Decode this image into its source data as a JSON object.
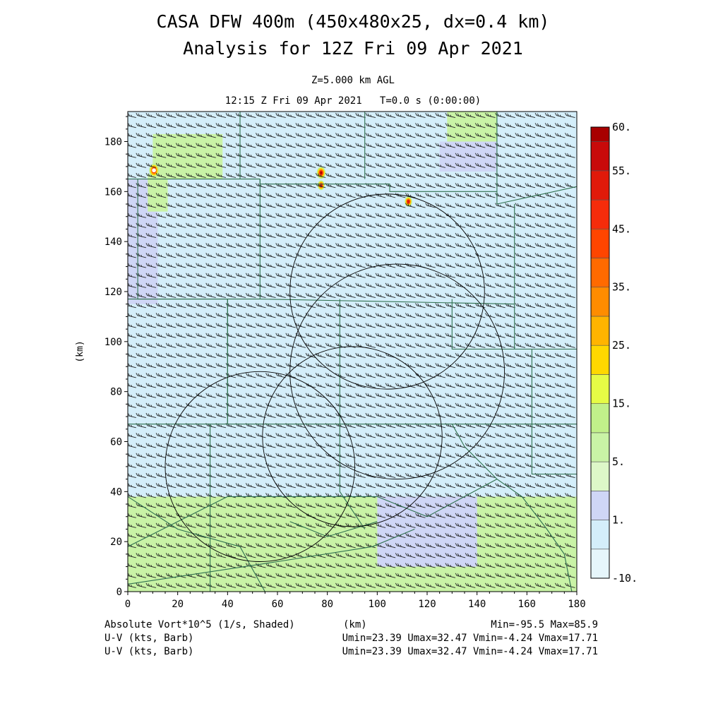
{
  "header": {
    "title_line1": "CASA DFW 400m (450x480x25, dx=0.4 km)",
    "title_line2": "Analysis for 12Z Fri 09 Apr 2021",
    "level": "Z=5.000 km AGL",
    "time": "12:15 Z Fri 09 Apr 2021   T=0.0 s (0:00:00)"
  },
  "footer": {
    "field": "Absolute Vort*10^5 (1/s, Shaded)",
    "xunit": "(km)",
    "minmax": "Min=-95.5 Max=85.9",
    "barb1_label": "U-V (kts, Barb)",
    "barb1_stats": "Umin=23.39 Umax=32.47 Vmin=-4.24 Vmax=17.71",
    "barb2_label": "U-V (kts, Barb)",
    "barb2_stats": "Umin=23.39 Umax=32.47 Vmin=-4.24 Vmax=17.71"
  },
  "chart_data": {
    "type": "heatmap",
    "title": "CASA DFW 400m (450x480x25, dx=0.4 km) Analysis for 12Z Fri 09 Apr 2021",
    "xlabel": "(km)",
    "ylabel": "(km)",
    "xlim": [
      0,
      180
    ],
    "ylim": [
      0,
      192
    ],
    "xticks": [
      0,
      20,
      40,
      60,
      80,
      100,
      120,
      140,
      160,
      180
    ],
    "yticks": [
      0,
      20,
      40,
      60,
      80,
      100,
      120,
      140,
      160,
      180
    ],
    "field_range": {
      "min": -95.5,
      "max": 85.9
    },
    "colorbar": {
      "bins": [
        {
          "value": -10,
          "color": "#e6f6fb"
        },
        {
          "value": 0,
          "color": "#d4eefa"
        },
        {
          "value": 1,
          "color": "#cfd6f6"
        },
        {
          "value": 2,
          "color": "#ddf7c8"
        },
        {
          "value": 5,
          "color": "#c9f3a6"
        },
        {
          "value": 10,
          "color": "#c1f08a"
        },
        {
          "value": 15,
          "color": "#e6fb45"
        },
        {
          "value": 20,
          "color": "#ffd800"
        },
        {
          "value": 25,
          "color": "#ffb400"
        },
        {
          "value": 30,
          "color": "#ff8c00"
        },
        {
          "value": 35,
          "color": "#ff6a00"
        },
        {
          "value": 40,
          "color": "#ff4500"
        },
        {
          "value": 45,
          "color": "#f52c0b"
        },
        {
          "value": 50,
          "color": "#e01a0a"
        },
        {
          "value": 55,
          "color": "#c80a0a"
        },
        {
          "value": 60,
          "color": "#a80000"
        }
      ],
      "labels": [
        {
          "value": -10,
          "text": "-10."
        },
        {
          "value": 1,
          "text": "1."
        },
        {
          "value": 5,
          "text": "5."
        },
        {
          "value": 15,
          "text": "15."
        },
        {
          "value": 25,
          "text": "25."
        },
        {
          "value": 35,
          "text": "35."
        },
        {
          "value": 45,
          "text": "45."
        },
        {
          "value": 55,
          "text": "55."
        },
        {
          "value": 60,
          "text": "60."
        }
      ]
    },
    "shaded_regions": [
      {
        "x": [
          0,
          180
        ],
        "y": [
          0,
          38
        ],
        "value": 5
      },
      {
        "x": [
          100,
          140
        ],
        "y": [
          10,
          38
        ],
        "value": 1
      },
      {
        "x": [
          0,
          12
        ],
        "y": [
          115,
          165
        ],
        "value": 1
      },
      {
        "x": [
          10,
          38
        ],
        "y": [
          165,
          183
        ],
        "value": 5
      },
      {
        "x": [
          8,
          16
        ],
        "y": [
          152,
          167
        ],
        "value": 5
      },
      {
        "x": [
          128,
          148
        ],
        "y": [
          180,
          192
        ],
        "value": 5
      },
      {
        "x": [
          125,
          148
        ],
        "y": [
          168,
          180
        ],
        "value": 1
      }
    ],
    "vortex_maxima": [
      {
        "x": 10.5,
        "y": 168.5,
        "peak": 85.9
      },
      {
        "x": 77.5,
        "y": 167.5,
        "peak": 60
      },
      {
        "x": 77.5,
        "y": 162.5,
        "peak": 45
      },
      {
        "x": 112.5,
        "y": 156,
        "peak": 50
      }
    ],
    "range_rings": [
      {
        "center": [
          53,
          50
        ],
        "radius": 38
      },
      {
        "center": [
          90,
          62
        ],
        "radius": 36
      },
      {
        "center": [
          108,
          88
        ],
        "radius": 43
      },
      {
        "center": [
          104,
          120
        ],
        "radius": 39
      }
    ],
    "wind_barbs": {
      "u_range_kts": [
        23.39,
        32.47
      ],
      "v_range_kts": [
        -4.24,
        17.71
      ],
      "spacing_km": 4
    },
    "county_boundaries": [
      [
        [
          45,
          192
        ],
        [
          45,
          165
        ]
      ],
      [
        [
          95,
          192
        ],
        [
          95,
          165
        ]
      ],
      [
        [
          148,
          192
        ],
        [
          148,
          155
        ]
      ],
      [
        [
          0,
          165
        ],
        [
          53,
          165
        ]
      ],
      [
        [
          53,
          165
        ],
        [
          53,
          163
        ],
        [
          105,
          163
        ],
        [
          105,
          160
        ],
        [
          148,
          160
        ]
      ],
      [
        [
          148,
          155
        ],
        [
          180,
          162
        ]
      ],
      [
        [
          4,
          165
        ],
        [
          4,
          117
        ],
        [
          53,
          117
        ]
      ],
      [
        [
          53,
          165
        ],
        [
          53,
          117
        ]
      ],
      [
        [
          53,
          117
        ],
        [
          155,
          115
        ]
      ],
      [
        [
          155,
          155
        ],
        [
          155,
          97
        ]
      ],
      [
        [
          0,
          117
        ],
        [
          40,
          117
        ],
        [
          40,
          67
        ]
      ],
      [
        [
          40,
          67
        ],
        [
          0,
          67
        ]
      ],
      [
        [
          40,
          117
        ],
        [
          40,
          67
        ],
        [
          180,
          67
        ]
      ],
      [
        [
          85,
          117
        ],
        [
          85,
          67
        ]
      ],
      [
        [
          130,
          117
        ],
        [
          130,
          97
        ],
        [
          180,
          97
        ]
      ],
      [
        [
          162,
          97
        ],
        [
          162,
          47
        ],
        [
          180,
          47
        ]
      ],
      [
        [
          130,
          67
        ],
        [
          135,
          58
        ],
        [
          148,
          45
        ],
        [
          158,
          38
        ],
        [
          168,
          25
        ],
        [
          175,
          15
        ],
        [
          178,
          0
        ]
      ],
      [
        [
          33,
          67
        ],
        [
          33,
          0
        ]
      ],
      [
        [
          0,
          38
        ],
        [
          20,
          25
        ],
        [
          45,
          18
        ],
        [
          55,
          0
        ]
      ],
      [
        [
          0,
          18
        ],
        [
          40,
          38
        ],
        [
          100,
          38
        ]
      ],
      [
        [
          100,
          38
        ],
        [
          120,
          30
        ],
        [
          148,
          45
        ]
      ],
      [
        [
          0,
          3
        ],
        [
          60,
          12
        ],
        [
          98,
          18
        ],
        [
          115,
          25
        ]
      ],
      [
        [
          85,
          67
        ],
        [
          85,
          40
        ],
        [
          95,
          25
        ]
      ],
      [
        [
          65,
          28
        ],
        [
          80,
          22
        ],
        [
          100,
          28
        ]
      ]
    ]
  }
}
